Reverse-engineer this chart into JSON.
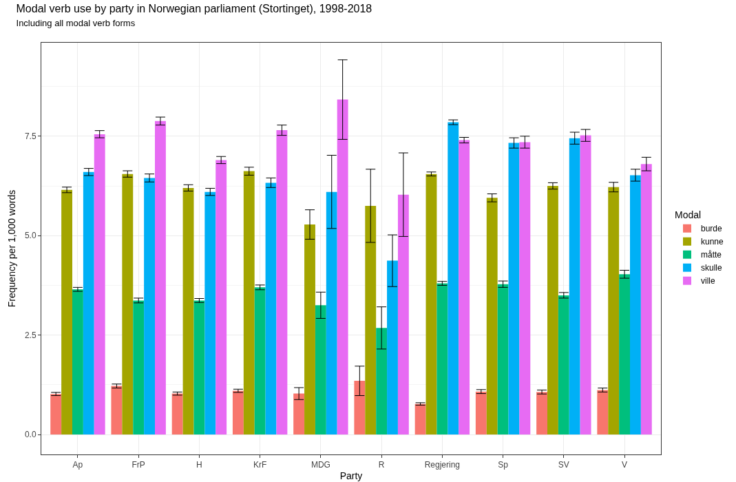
{
  "chart_data": {
    "type": "bar",
    "title": "Modal verb use by party in Norwegian parliament (Stortinget), 1998-2018",
    "subtitle": "Including all modal verb forms",
    "xlabel": "Party",
    "ylabel": "Frequency per 1,000 words",
    "legend_title": "Modal",
    "categories": [
      "Ap",
      "FrP",
      "H",
      "KrF",
      "MDG",
      "R",
      "Regjering",
      "Sp",
      "SV",
      "V"
    ],
    "series": [
      {
        "name": "burde",
        "color": "#f8766d",
        "values": [
          1.02,
          1.22,
          1.03,
          1.1,
          1.03,
          1.35,
          0.77,
          1.08,
          1.07,
          1.12
        ],
        "errors": [
          0.04,
          0.05,
          0.04,
          0.04,
          0.15,
          0.37,
          0.03,
          0.05,
          0.05,
          0.05
        ]
      },
      {
        "name": "kunne",
        "color": "#a3a500",
        "values": [
          6.15,
          6.55,
          6.2,
          6.62,
          5.28,
          5.75,
          6.55,
          5.95,
          6.25,
          6.22
        ],
        "errors": [
          0.07,
          0.08,
          0.08,
          0.1,
          0.37,
          0.92,
          0.05,
          0.1,
          0.08,
          0.12
        ]
      },
      {
        "name": "måtte",
        "color": "#00bf7d",
        "values": [
          3.65,
          3.37,
          3.37,
          3.7,
          3.25,
          2.68,
          3.8,
          3.78,
          3.5,
          4.03
        ],
        "errors": [
          0.05,
          0.06,
          0.05,
          0.06,
          0.33,
          0.53,
          0.05,
          0.08,
          0.07,
          0.1
        ]
      },
      {
        "name": "skulle",
        "color": "#00b0f6",
        "values": [
          6.6,
          6.45,
          6.1,
          6.33,
          6.1,
          4.37,
          7.85,
          7.33,
          7.45,
          6.52
        ],
        "errors": [
          0.09,
          0.1,
          0.09,
          0.12,
          0.92,
          0.65,
          0.06,
          0.13,
          0.15,
          0.15
        ]
      },
      {
        "name": "ville",
        "color": "#e76bf3",
        "values": [
          7.55,
          7.88,
          6.9,
          7.65,
          8.42,
          6.03,
          7.4,
          7.35,
          7.52,
          6.8
        ],
        "errors": [
          0.09,
          0.1,
          0.09,
          0.13,
          1.0,
          1.05,
          0.07,
          0.15,
          0.15,
          0.17
        ]
      }
    ],
    "ylim": [
      -0.5,
      9.85
    ],
    "yticks": [
      {
        "value": 0,
        "label": "0.0"
      },
      {
        "value": 2.5,
        "label": "2.5"
      },
      {
        "value": 5,
        "label": "5.0"
      },
      {
        "value": 7.5,
        "label": "7.5"
      }
    ],
    "grid": true,
    "legend": "right"
  }
}
